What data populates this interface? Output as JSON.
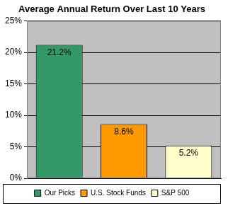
{
  "chart_data": {
    "type": "bar",
    "title": "Average Annual Return Over Last 10 Years",
    "categories": [
      "Our Picks",
      "U.S. Stock Funds",
      "S&P 500"
    ],
    "values": [
      21.2,
      8.6,
      5.2
    ],
    "value_labels": [
      "21.2%",
      "8.6%",
      "5.2%"
    ],
    "colors": [
      "#339966",
      "#ff9900",
      "#ffffcc"
    ],
    "ylim": [
      0,
      25
    ],
    "yticks": [
      {
        "value": 0,
        "label": "0%"
      },
      {
        "value": 5,
        "label": "5%"
      },
      {
        "value": 10,
        "label": "10%"
      },
      {
        "value": 15,
        "label": "15%"
      },
      {
        "value": 20,
        "label": "20%"
      },
      {
        "value": 25,
        "label": "25%"
      }
    ],
    "grid": true,
    "legend": "bottom",
    "data_labels": true,
    "tick_labels": "y"
  }
}
